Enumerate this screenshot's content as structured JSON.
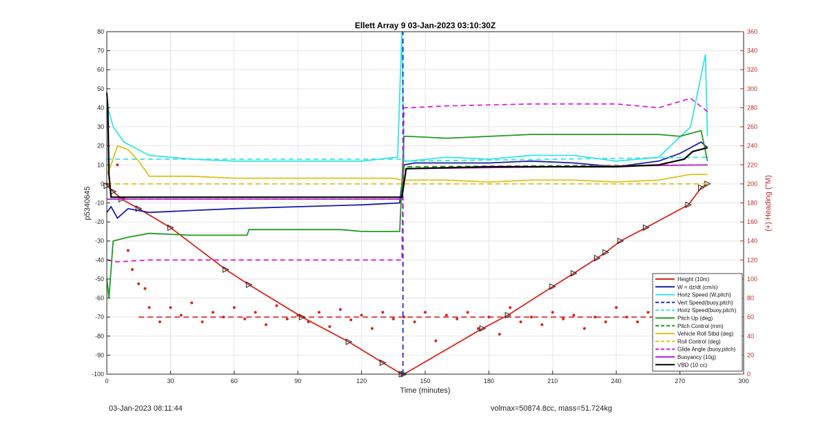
{
  "footer": {
    "timestamp": "03-Jan-2023 08:11:44",
    "summary": "volmax=50874.8cc, mass=51.724kg"
  },
  "chart_data": {
    "type": "line",
    "title": "Ellett Array 9 03-Jan-2023 03:10:30Z",
    "xlabel": "Time (minutes)",
    "ylabel_left": "p5340645",
    "ylabel_right": "(+) Heading (°M)",
    "xlim": [
      0,
      300
    ],
    "ylim_left": [
      -100,
      80
    ],
    "ylim_right": [
      0,
      360
    ],
    "x_ticks": [
      0,
      30,
      60,
      90,
      120,
      150,
      180,
      210,
      240,
      270,
      300
    ],
    "y_ticks_left": [
      80,
      70,
      60,
      50,
      40,
      30,
      20,
      10,
      0,
      -10,
      -20,
      -30,
      -40,
      -50,
      -60,
      -70,
      -80,
      -90,
      -100
    ],
    "y_ticks_right": [
      0,
      20,
      40,
      60,
      80,
      100,
      120,
      140,
      160,
      180,
      200,
      220,
      240,
      260,
      280,
      300,
      320,
      340,
      360
    ],
    "grid": true,
    "legend_position": "bottom-right",
    "colors": {
      "height": "#d9241c",
      "w": "#1a1aa8",
      "horiz_speed": "#35e3ea",
      "vert_speed": "#1a2fd6",
      "pitch": "#1e9a1e",
      "vehicle_roll": "#dcc21a",
      "glide_angle": "#d81fd8",
      "buoyancy": "#c81fd8",
      "vbd": "#000000",
      "right_axis": "#c0282a"
    },
    "series": [
      {
        "name": "Height (10m)",
        "key": "height",
        "style": "solid",
        "markers": "triangle",
        "x": [
          0,
          3,
          7,
          15,
          30,
          56,
          67,
          92,
          114,
          130,
          139,
          140,
          177,
          189,
          210,
          220,
          231,
          235,
          242,
          254,
          274,
          280,
          283
        ],
        "y": [
          -1,
          -4,
          -8,
          -13,
          -23,
          -45,
          -53,
          -70,
          -83,
          -94,
          -100,
          -100,
          -76,
          -69,
          -54,
          -47,
          -39,
          -36,
          -30,
          -23,
          -11,
          -2,
          0
        ]
      },
      {
        "name": "W = dz/dt (cm/s)",
        "key": "w",
        "style": "solid",
        "x": [
          0,
          2,
          5,
          10,
          20,
          40,
          60,
          90,
          120,
          138,
          140,
          145,
          160,
          180,
          200,
          220,
          240,
          260,
          270,
          280,
          283
        ],
        "y": [
          -15,
          -12,
          -18,
          -13,
          -15,
          -14,
          -13,
          -12,
          -11,
          -10,
          10,
          11,
          11,
          11,
          12,
          11,
          9,
          12,
          16,
          22,
          19
        ]
      },
      {
        "name": "Horiz Speed (W,pitch)",
        "key": "horiz_speed",
        "style": "solid",
        "x": [
          0,
          1,
          3,
          8,
          20,
          40,
          60,
          80,
          100,
          120,
          137,
          139,
          140,
          142,
          160,
          180,
          200,
          220,
          240,
          260,
          275,
          282,
          283
        ],
        "y": [
          40,
          38,
          30,
          22,
          15,
          13,
          12,
          12,
          12,
          12,
          14,
          80,
          12,
          12,
          14,
          13,
          15,
          15,
          12,
          14,
          30,
          68,
          25
        ]
      },
      {
        "name": "Vert Speed(buoy,pitch)",
        "key": "vert_speed",
        "style": "dashed",
        "x": [
          139.5,
          139.5
        ],
        "y": [
          -100,
          80
        ]
      },
      {
        "name": "Horiz Speed(buoy,pitch)",
        "key": "horiz_speed_buoy",
        "style": "dashed",
        "x": [
          0,
          139,
          140,
          283
        ],
        "y": [
          13,
          13,
          12,
          14
        ]
      },
      {
        "name": "Pitch Up (deg)",
        "key": "pitch",
        "style": "solid",
        "x": [
          0,
          1,
          3,
          10,
          20,
          40,
          66,
          67,
          90,
          110,
          120,
          138,
          140,
          142,
          160,
          180,
          200,
          220,
          240,
          260,
          270,
          280,
          283
        ],
        "y": [
          -50,
          -60,
          -30,
          -28,
          -26,
          -27,
          -27,
          -24,
          -24,
          -24,
          -25,
          -25,
          25,
          25,
          24,
          25,
          26,
          26,
          26,
          26,
          25,
          28,
          12
        ]
      },
      {
        "name": "Pitch Control (mm)",
        "key": "pitch_control",
        "style": "dashed",
        "x": [
          0,
          139,
          140,
          283
        ],
        "y": [
          -8,
          -8,
          9,
          10
        ]
      },
      {
        "name": "Vehicle Roll Stbd (deg)",
        "key": "vehicle_roll",
        "style": "solid",
        "x": [
          0,
          2,
          5,
          10,
          15,
          20,
          40,
          60,
          80,
          100,
          120,
          135,
          139,
          140,
          160,
          180,
          200,
          220,
          240,
          260,
          275,
          283
        ],
        "y": [
          5,
          10,
          20,
          18,
          12,
          4,
          4,
          3,
          3,
          3,
          3,
          3,
          2,
          2,
          2,
          1,
          2,
          2,
          1,
          2,
          5,
          5
        ]
      },
      {
        "name": "Roll Control (deg)",
        "key": "roll_control",
        "style": "dashed",
        "x": [
          0,
          139,
          140,
          283
        ],
        "y": [
          0,
          0,
          0,
          0
        ]
      },
      {
        "name": "Glide Angle (buoy,pitch)",
        "key": "glide_angle",
        "style": "dashed",
        "x": [
          0,
          5,
          20,
          60,
          100,
          139,
          140,
          142,
          160,
          200,
          240,
          260,
          275,
          283
        ],
        "y": [
          -40,
          -41,
          -40,
          -40,
          -40,
          -40,
          40,
          40,
          41,
          42,
          42,
          40,
          45,
          38
        ]
      },
      {
        "name": "Buoyancy (10g)",
        "key": "buoyancy",
        "style": "solid",
        "x": [
          0,
          139,
          141,
          283
        ],
        "y": [
          -8,
          -8,
          8,
          10
        ]
      },
      {
        "name": "VBD (10 cc)",
        "key": "vbd",
        "style": "solid",
        "x": [
          0,
          0.5,
          1,
          2,
          139,
          141,
          180,
          240,
          260,
          272,
          276,
          283
        ],
        "y": [
          48,
          40,
          5,
          -7,
          -7,
          8,
          9,
          9,
          10,
          13,
          17,
          19
        ]
      }
    ],
    "heading_series": {
      "name": "Heading",
      "key": "heading",
      "axis": "right",
      "mean_line": 60,
      "x": [
        0,
        5,
        8,
        10,
        12,
        15,
        18,
        20,
        25,
        30,
        35,
        40,
        45,
        50,
        55,
        60,
        65,
        70,
        75,
        80,
        85,
        90,
        95,
        100,
        105,
        110,
        115,
        120,
        125,
        130,
        135,
        140,
        145,
        150,
        155,
        160,
        165,
        170,
        175,
        180,
        185,
        190,
        195,
        200,
        205,
        210,
        215,
        220,
        225,
        230,
        235,
        240,
        245,
        250,
        255,
        260,
        265,
        270,
        275,
        280
      ],
      "y": [
        200,
        220,
        185,
        130,
        110,
        95,
        90,
        70,
        55,
        70,
        62,
        75,
        55,
        65,
        60,
        70,
        58,
        65,
        52,
        72,
        58,
        62,
        55,
        65,
        50,
        68,
        57,
        62,
        48,
        65,
        58,
        60,
        55,
        65,
        35,
        62,
        58,
        65,
        48,
        60,
        42,
        70,
        55,
        60,
        52,
        65,
        58,
        62,
        48,
        60,
        55,
        70,
        60,
        55,
        65,
        50,
        48,
        60,
        55,
        50
      ]
    }
  }
}
